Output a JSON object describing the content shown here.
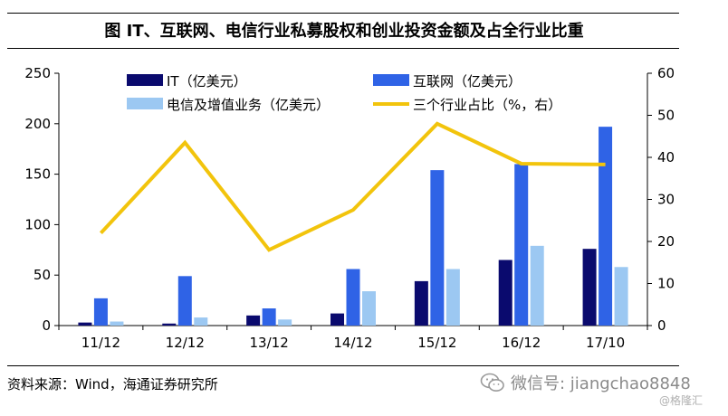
{
  "title": "图 IT、互联网、电信行业私募股权和创业投资金额及占全行业比重",
  "source": "资料来源：Wind，海通证券研究所",
  "watermark": {
    "wechat": "微信号: jiangchao8848",
    "brand": "@格隆汇"
  },
  "colors": {
    "it": "#0a0a6e",
    "internet": "#2f63e6",
    "telecom": "#9cc8f2",
    "share": "#f2c40c"
  },
  "chart_data": {
    "type": "bar",
    "title": "图 IT、互联网、电信行业私募股权和创业投资金额及占全行业比重",
    "categories": [
      "11/12",
      "12/12",
      "13/12",
      "14/12",
      "15/12",
      "16/12",
      "17/10"
    ],
    "series": [
      {
        "name": "IT（亿美元）",
        "type": "bar",
        "axis": "left",
        "values": [
          3,
          2,
          10,
          12,
          44,
          65,
          76
        ]
      },
      {
        "name": "互联网（亿美元）",
        "type": "bar",
        "axis": "left",
        "values": [
          27,
          49,
          17,
          56,
          154,
          160,
          197
        ]
      },
      {
        "name": "电信及增值业务（亿美元）",
        "type": "bar",
        "axis": "left",
        "values": [
          4,
          8,
          6,
          34,
          56,
          79,
          58
        ]
      },
      {
        "name": "三个行业占比（%，右）",
        "type": "line",
        "axis": "right",
        "values": [
          22,
          43.5,
          18,
          27.5,
          48,
          38.5,
          38.3
        ]
      }
    ],
    "y_left": {
      "min": 0,
      "max": 250,
      "ticks": [
        "0",
        "50",
        "100",
        "150",
        "200",
        "250"
      ]
    },
    "y_right": {
      "min": 0,
      "max": 60,
      "ticks": [
        "0",
        "10",
        "20",
        "30",
        "40",
        "50",
        "60"
      ]
    },
    "grid": false,
    "legend": "top"
  }
}
